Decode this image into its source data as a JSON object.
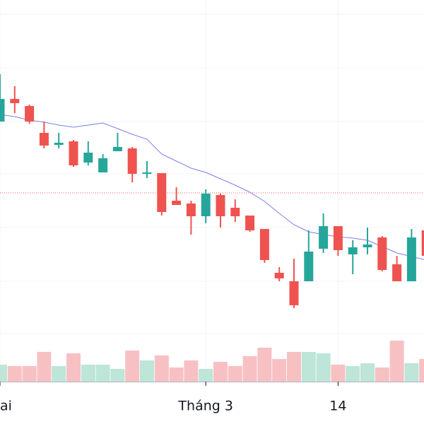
{
  "chart_data": {
    "type": "candlestick",
    "categories": [
      "ai",
      null,
      null,
      null,
      null,
      null,
      null,
      null,
      null,
      null,
      null,
      null,
      null,
      null,
      "Tháng 3",
      null,
      null,
      null,
      null,
      null,
      null,
      null,
      null,
      "14",
      null,
      null,
      null,
      null,
      null,
      null
    ],
    "open": [
      368,
      400,
      390,
      352,
      335,
      340,
      310,
      296,
      326,
      330,
      294,
      295,
      256,
      252,
      234,
      264,
      246,
      235,
      216,
      154,
      142,
      142,
      188,
      220,
      180,
      190,
      204,
      166,
      142,
      214
    ],
    "high": [
      435,
      418,
      392,
      368,
      352,
      342,
      340,
      322,
      352,
      332,
      312,
      295,
      275,
      256,
      272,
      266,
      258,
      235,
      216,
      162,
      174,
      214,
      238,
      220,
      200,
      218,
      206,
      178,
      216,
      216
    ],
    "low": [
      368,
      380,
      365,
      330,
      330,
      304,
      306,
      296,
      326,
      282,
      288,
      235,
      250,
      208,
      224,
      218,
      226,
      212,
      168,
      142,
      104,
      142,
      182,
      178,
      152,
      180,
      156,
      142,
      142,
      176
    ],
    "close": [
      400,
      394,
      368,
      334,
      338,
      306,
      324,
      316,
      332,
      294,
      296,
      240,
      250,
      234,
      266,
      234,
      234,
      214,
      172,
      146,
      108,
      184,
      220,
      186,
      190,
      194,
      158,
      142,
      204,
      178
    ],
    "moving_average": [
      378,
      375,
      370,
      367,
      363,
      360,
      363,
      366,
      358,
      350,
      343,
      322,
      312,
      302,
      296,
      287,
      278,
      268,
      255,
      238,
      222,
      212,
      208,
      205,
      203,
      200,
      191,
      182,
      177,
      172
    ],
    "volume": [
      24,
      22,
      22,
      42,
      22,
      40,
      24,
      24,
      18,
      44,
      30,
      37,
      20,
      30,
      18,
      28,
      22,
      36,
      48,
      32,
      42,
      42,
      40,
      24,
      22,
      26,
      20,
      58,
      26,
      32
    ],
    "price_line": 267,
    "ylim": [
      0,
      540
    ],
    "yticks": [
      68,
      142,
      218,
      294,
      368,
      444,
      520
    ],
    "grid": true,
    "up_color": "#26a69a",
    "down_color": "#ef5350",
    "volume_up_color": "#bde5d8",
    "volume_down_color": "#f7c1c4",
    "average_color": "#7b7fe6",
    "price_line_color": "#ef5350"
  }
}
